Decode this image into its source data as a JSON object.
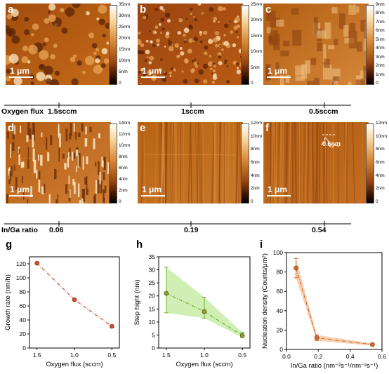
{
  "afm_panels": [
    {
      "label": "a",
      "scale_bar": "1 μm",
      "colorbar_ticks": [
        "35nm",
        "30nm",
        "25nm",
        "20nm",
        "15nm",
        "10nm",
        "5nm",
        "0"
      ]
    },
    {
      "label": "b",
      "scale_bar": "1 μm",
      "colorbar_ticks": [
        "25nm",
        "20nm",
        "15nm",
        "10nm",
        "5nm",
        "0"
      ]
    },
    {
      "label": "c",
      "scale_bar": "1 μm",
      "colorbar_ticks": [
        "9nm",
        "8nm",
        "7nm",
        "6nm",
        "5nm",
        "4nm",
        "3nm",
        "2nm",
        "1nm",
        "0"
      ]
    },
    {
      "label": "d",
      "scale_bar": "1 μm",
      "colorbar_ticks": [
        "14nm",
        "12nm",
        "10nm",
        "8nm",
        "6nm",
        "4nm",
        "2nm",
        "0"
      ]
    },
    {
      "label": "e",
      "scale_bar": "1 μm",
      "colorbar_ticks": [
        "12nm",
        "10nm",
        "8nm",
        "6nm",
        "4nm",
        "2nm",
        "0"
      ]
    },
    {
      "label": "f",
      "scale_bar": "1 μm",
      "colorbar_ticks": [
        "12nm",
        "10nm",
        "8nm",
        "6nm",
        "4nm",
        "2nm",
        "0"
      ],
      "step_annotation": "0.6nm"
    }
  ],
  "rows": [
    {
      "title": "Oxygen flux",
      "ticks": [
        "1.5sccm",
        "1sccm",
        "0.5sccm"
      ]
    },
    {
      "title": "In/Ga ratio",
      "ticks": [
        "0.06",
        "0.19",
        "0.54"
      ]
    }
  ],
  "chart_data": [
    {
      "label": "g",
      "type": "line",
      "xlabel": "Oxygen flux (sccm)",
      "ylabel": "Growth rate (nm/h)",
      "x": [
        1.5,
        1.0,
        0.5
      ],
      "y": [
        121,
        69,
        31
      ],
      "xlim": [
        1.6,
        0.4
      ],
      "ylim": [
        0,
        130
      ],
      "xticks": [
        "1.5",
        "1.0",
        "0.5"
      ],
      "yticks": [
        "0",
        "20",
        "40",
        "60",
        "80",
        "100",
        "120"
      ],
      "color": "#d44a2a"
    },
    {
      "label": "h",
      "type": "line",
      "xlabel": "Oxygen flux (sccm)",
      "ylabel": "Step hight (nm)",
      "x": [
        1.5,
        1.0,
        0.5
      ],
      "y": [
        21,
        14,
        4.8
      ],
      "err_low": [
        13.5,
        11.5,
        4.0
      ],
      "err_high": [
        31,
        19.5,
        6.0
      ],
      "xlim": [
        1.6,
        0.4
      ],
      "ylim": [
        0,
        35
      ],
      "xticks": [
        "1.5",
        "1.0",
        "0.5"
      ],
      "yticks": [
        "0",
        "5",
        "10",
        "15",
        "20",
        "25",
        "30",
        "35"
      ],
      "color": "#6fae2a",
      "band_color": "#c8eca8"
    },
    {
      "label": "i",
      "type": "line",
      "xlabel": "In/Ga ratio (nm⁻²s⁻¹/nm⁻²s⁻¹)",
      "ylabel": "Nucleation density (Counts/μm²)",
      "x": [
        0.06,
        0.19,
        0.54
      ],
      "y": [
        84,
        12,
        5
      ],
      "err_low": [
        74,
        9,
        4
      ],
      "err_high": [
        94,
        15,
        6
      ],
      "xlim": [
        0,
        0.6
      ],
      "ylim": [
        0,
        100
      ],
      "xticks": [
        "0.0",
        "0.2",
        "0.4",
        "0.6"
      ],
      "yticks": [
        "0",
        "20",
        "40",
        "60",
        "80",
        "100"
      ],
      "color": "#d76b2a",
      "band_color": "#f6c9a6"
    }
  ]
}
